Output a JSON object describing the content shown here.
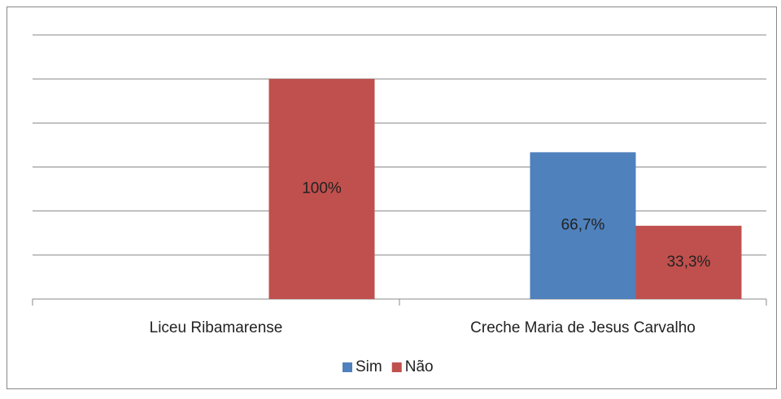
{
  "chart_data": {
    "type": "bar",
    "categories": [
      "Liceu Ribamarense",
      "Creche Maria de Jesus Carvalho"
    ],
    "series": [
      {
        "name": "Sim",
        "color": "#4f81bd",
        "values": [
          null,
          66.7
        ],
        "value_labels": [
          null,
          "66,7%"
        ]
      },
      {
        "name": "Não",
        "color": "#c0504d",
        "values": [
          100,
          33.3
        ],
        "value_labels": [
          "100%",
          "33,3%"
        ]
      }
    ],
    "ylim": [
      0,
      120
    ],
    "yticks": [
      0,
      20,
      40,
      60,
      80,
      100,
      120
    ],
    "grid": true,
    "legend": "bottom"
  }
}
